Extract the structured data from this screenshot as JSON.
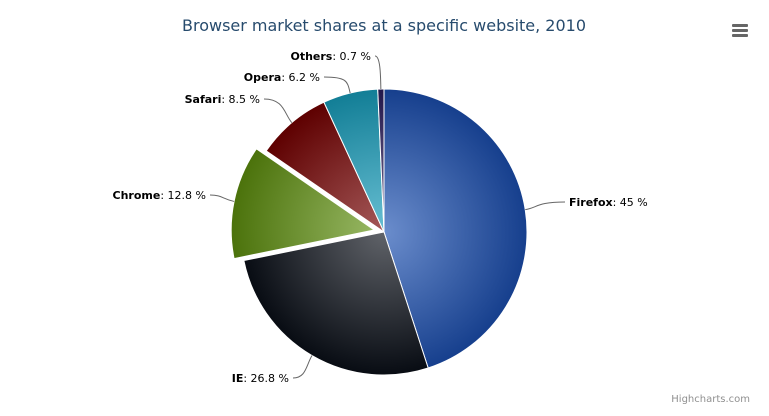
{
  "chart_data": {
    "type": "pie",
    "title": "Browser market shares at a specific website, 2010",
    "unit": "%",
    "slices": [
      {
        "name": "Firefox",
        "value": 45,
        "color": "#1c4fb0"
      },
      {
        "name": "IE",
        "value": 26.8,
        "color": "#0a0f18"
      },
      {
        "name": "Chrome",
        "value": 12.8,
        "color": "#5e8e0e",
        "sliced": true
      },
      {
        "name": "Safari",
        "value": 8.5,
        "color": "#750000"
      },
      {
        "name": "Opera",
        "value": 6.2,
        "color": "#179dbc"
      },
      {
        "name": "Others",
        "value": 0.7,
        "color": "#2a1d5c"
      }
    ]
  },
  "credits": "Highcharts.com",
  "menu_icon": "hamburger-menu-icon"
}
